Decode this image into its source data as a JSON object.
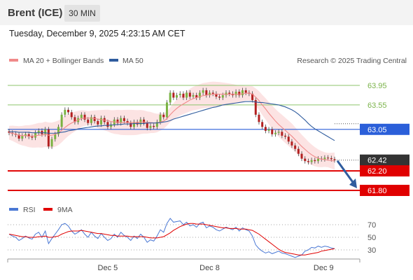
{
  "header": {
    "instrument": "Brent (ICE)",
    "timeframe": "30 MIN",
    "datetime": "Tuesday, December 9, 2025 4:23:15 AM CET"
  },
  "chart_data": [
    {
      "type": "candlestick",
      "title": "Brent (ICE)",
      "legend": [
        {
          "name": "MA 20 + Bollinger Bands",
          "color": "#f08a8a"
        },
        {
          "name": "MA 50",
          "color": "#2f5c9e"
        }
      ],
      "copyright": "Research © 2025 Trading Central",
      "x_tick_labels": [
        "Dec 5",
        "Dec 8",
        "Dec 9"
      ],
      "ylim": [
        61.6,
        64.0
      ],
      "levels": [
        {
          "value": 63.95,
          "label": "63.95",
          "kind": "resistance",
          "color": "#8cc56b"
        },
        {
          "value": 63.55,
          "label": "63.55",
          "kind": "resistance",
          "color": "#8cc56b"
        },
        {
          "value": 63.05,
          "label": "63.05",
          "kind": "pivot",
          "color": "#2b5fd9"
        },
        {
          "value": 62.42,
          "label": "62.42",
          "kind": "last",
          "color": "#333333"
        },
        {
          "value": 62.2,
          "label": "62.20",
          "kind": "support",
          "color": "#e00000"
        },
        {
          "value": 61.8,
          "label": "61.80",
          "kind": "support",
          "color": "#e00000"
        }
      ],
      "close_series": [
        62.98,
        62.96,
        62.94,
        62.86,
        62.92,
        62.95,
        62.9,
        62.88,
        62.98,
        63.02,
        62.95,
        63.05,
        62.7,
        62.85,
        62.95,
        63.1,
        63.35,
        63.45,
        63.4,
        63.3,
        63.2,
        63.28,
        63.35,
        63.25,
        63.18,
        63.3,
        63.22,
        63.15,
        63.28,
        63.2,
        63.1,
        63.15,
        63.25,
        63.18,
        63.28,
        63.22,
        63.18,
        63.1,
        63.2,
        63.15,
        63.25,
        63.18,
        63.08,
        63.12,
        63.1,
        63.2,
        63.35,
        63.3,
        63.6,
        63.8,
        63.7,
        63.75,
        63.78,
        63.7,
        63.8,
        63.72,
        63.75,
        63.7,
        63.8,
        63.85,
        63.75,
        63.8,
        63.78,
        63.72,
        63.7,
        63.75,
        63.8,
        63.78,
        63.75,
        63.82,
        63.75,
        63.85,
        63.8,
        63.78,
        63.65,
        63.35,
        63.2,
        63.1,
        63.02,
        63.05,
        62.95,
        62.98,
        63.0,
        62.92,
        62.9,
        62.8,
        62.72,
        62.65,
        62.55,
        62.45,
        62.4,
        62.38,
        62.42,
        62.4,
        62.45,
        62.44,
        62.47,
        62.46,
        62.44,
        62.42
      ],
      "indicator_lines": [
        {
          "name": "MA 20",
          "values": [
            62.98,
            62.97,
            62.95,
            62.93,
            62.92,
            62.92,
            62.91,
            62.91,
            62.92,
            62.93,
            62.93,
            62.95,
            62.93,
            62.93,
            62.95,
            62.98,
            63.03,
            63.09,
            63.14,
            63.18,
            63.21,
            63.24,
            63.27,
            63.28,
            63.28,
            63.28,
            63.27,
            63.26,
            63.25,
            63.24,
            63.23,
            63.21,
            63.2,
            63.2,
            63.19,
            63.19,
            63.19,
            63.19,
            63.19,
            63.19,
            63.2,
            63.2,
            63.19,
            63.19,
            63.18,
            63.18,
            63.2,
            63.22,
            63.27,
            63.35,
            63.42,
            63.48,
            63.53,
            63.57,
            63.61,
            63.65,
            63.68,
            63.7,
            63.72,
            63.74,
            63.75,
            63.76,
            63.77,
            63.77,
            63.77,
            63.77,
            63.77,
            63.77,
            63.77,
            63.77,
            63.77,
            63.78,
            63.79,
            63.79,
            63.77,
            63.71,
            63.64,
            63.55,
            63.47,
            63.38,
            63.3,
            63.22,
            63.15,
            63.09,
            63.03,
            62.97,
            62.91,
            62.84,
            62.77,
            62.7,
            62.64,
            62.58,
            62.53,
            62.49,
            62.46,
            62.44,
            62.43,
            62.42,
            62.41,
            62.4
          ]
        },
        {
          "name": "MA 50",
          "values": [
            63.0,
            63.0,
            63.0,
            62.99,
            62.99,
            62.99,
            62.99,
            62.98,
            62.98,
            62.98,
            62.98,
            62.98,
            62.97,
            62.97,
            62.97,
            62.98,
            62.99,
            63.0,
            63.02,
            63.03,
            63.04,
            63.06,
            63.07,
            63.08,
            63.09,
            63.1,
            63.11,
            63.12,
            63.12,
            63.13,
            63.13,
            63.14,
            63.14,
            63.15,
            63.15,
            63.16,
            63.16,
            63.16,
            63.17,
            63.17,
            63.17,
            63.17,
            63.18,
            63.18,
            63.18,
            63.18,
            63.19,
            63.2,
            63.21,
            63.23,
            63.26,
            63.28,
            63.3,
            63.32,
            63.34,
            63.36,
            63.38,
            63.4,
            63.42,
            63.44,
            63.46,
            63.48,
            63.5,
            63.51,
            63.53,
            63.55,
            63.56,
            63.57,
            63.58,
            63.59,
            63.6,
            63.61,
            63.62,
            63.62,
            63.62,
            63.61,
            63.6,
            63.6,
            63.59,
            63.58,
            63.57,
            63.56,
            63.55,
            63.53,
            63.51,
            63.48,
            63.45,
            63.41,
            63.36,
            63.3,
            63.24,
            63.17,
            63.11,
            63.06,
            63.02,
            62.98,
            62.94,
            62.9,
            62.86,
            62.82
          ]
        }
      ],
      "projection": {
        "from": 62.42,
        "to": 61.8,
        "direction": "down"
      }
    },
    {
      "type": "line",
      "title": "RSI",
      "legend": [
        {
          "name": "RSI",
          "color": "#4a78d4"
        },
        {
          "name": "9MA",
          "color": "#e00000"
        }
      ],
      "y_ticks": [
        70,
        50,
        30
      ],
      "series": [
        {
          "name": "RSI",
          "values": [
            55,
            52,
            50,
            45,
            48,
            52,
            49,
            47,
            55,
            58,
            50,
            60,
            40,
            48,
            55,
            62,
            70,
            72,
            68,
            60,
            55,
            58,
            62,
            55,
            50,
            58,
            52,
            48,
            56,
            50,
            45,
            48,
            55,
            50,
            58,
            53,
            50,
            45,
            52,
            48,
            55,
            50,
            42,
            46,
            44,
            52,
            62,
            58,
            72,
            80,
            74,
            75,
            76,
            70,
            74,
            68,
            70,
            66,
            72,
            74,
            65,
            68,
            66,
            62,
            60,
            63,
            66,
            64,
            62,
            66,
            60,
            65,
            62,
            60,
            52,
            38,
            32,
            28,
            25,
            27,
            24,
            26,
            28,
            25,
            24,
            22,
            20,
            18,
            20,
            22,
            28,
            30,
            34,
            33,
            36,
            34,
            36,
            35,
            33,
            32
          ]
        },
        {
          "name": "9MA",
          "values": [
            55,
            54,
            53,
            52,
            51,
            51,
            50,
            50,
            50,
            51,
            51,
            52,
            50,
            50,
            51,
            52,
            55,
            57,
            59,
            60,
            60,
            60,
            61,
            60,
            59,
            58,
            57,
            56,
            56,
            55,
            54,
            53,
            53,
            52,
            52,
            52,
            52,
            51,
            51,
            51,
            51,
            51,
            50,
            49,
            49,
            49,
            50,
            51,
            54,
            57,
            61,
            64,
            67,
            69,
            71,
            72,
            72,
            71,
            71,
            71,
            70,
            69,
            68,
            67,
            66,
            65,
            65,
            64,
            64,
            64,
            63,
            63,
            63,
            62,
            61,
            58,
            55,
            51,
            47,
            43,
            39,
            35,
            31,
            28,
            26,
            25,
            24,
            23,
            22,
            22,
            22,
            23,
            24,
            25,
            26,
            28,
            29,
            30,
            31,
            32
          ]
        }
      ],
      "x_tick_labels": [
        "Dec 5",
        "Dec 8",
        "Dec 9"
      ]
    }
  ]
}
